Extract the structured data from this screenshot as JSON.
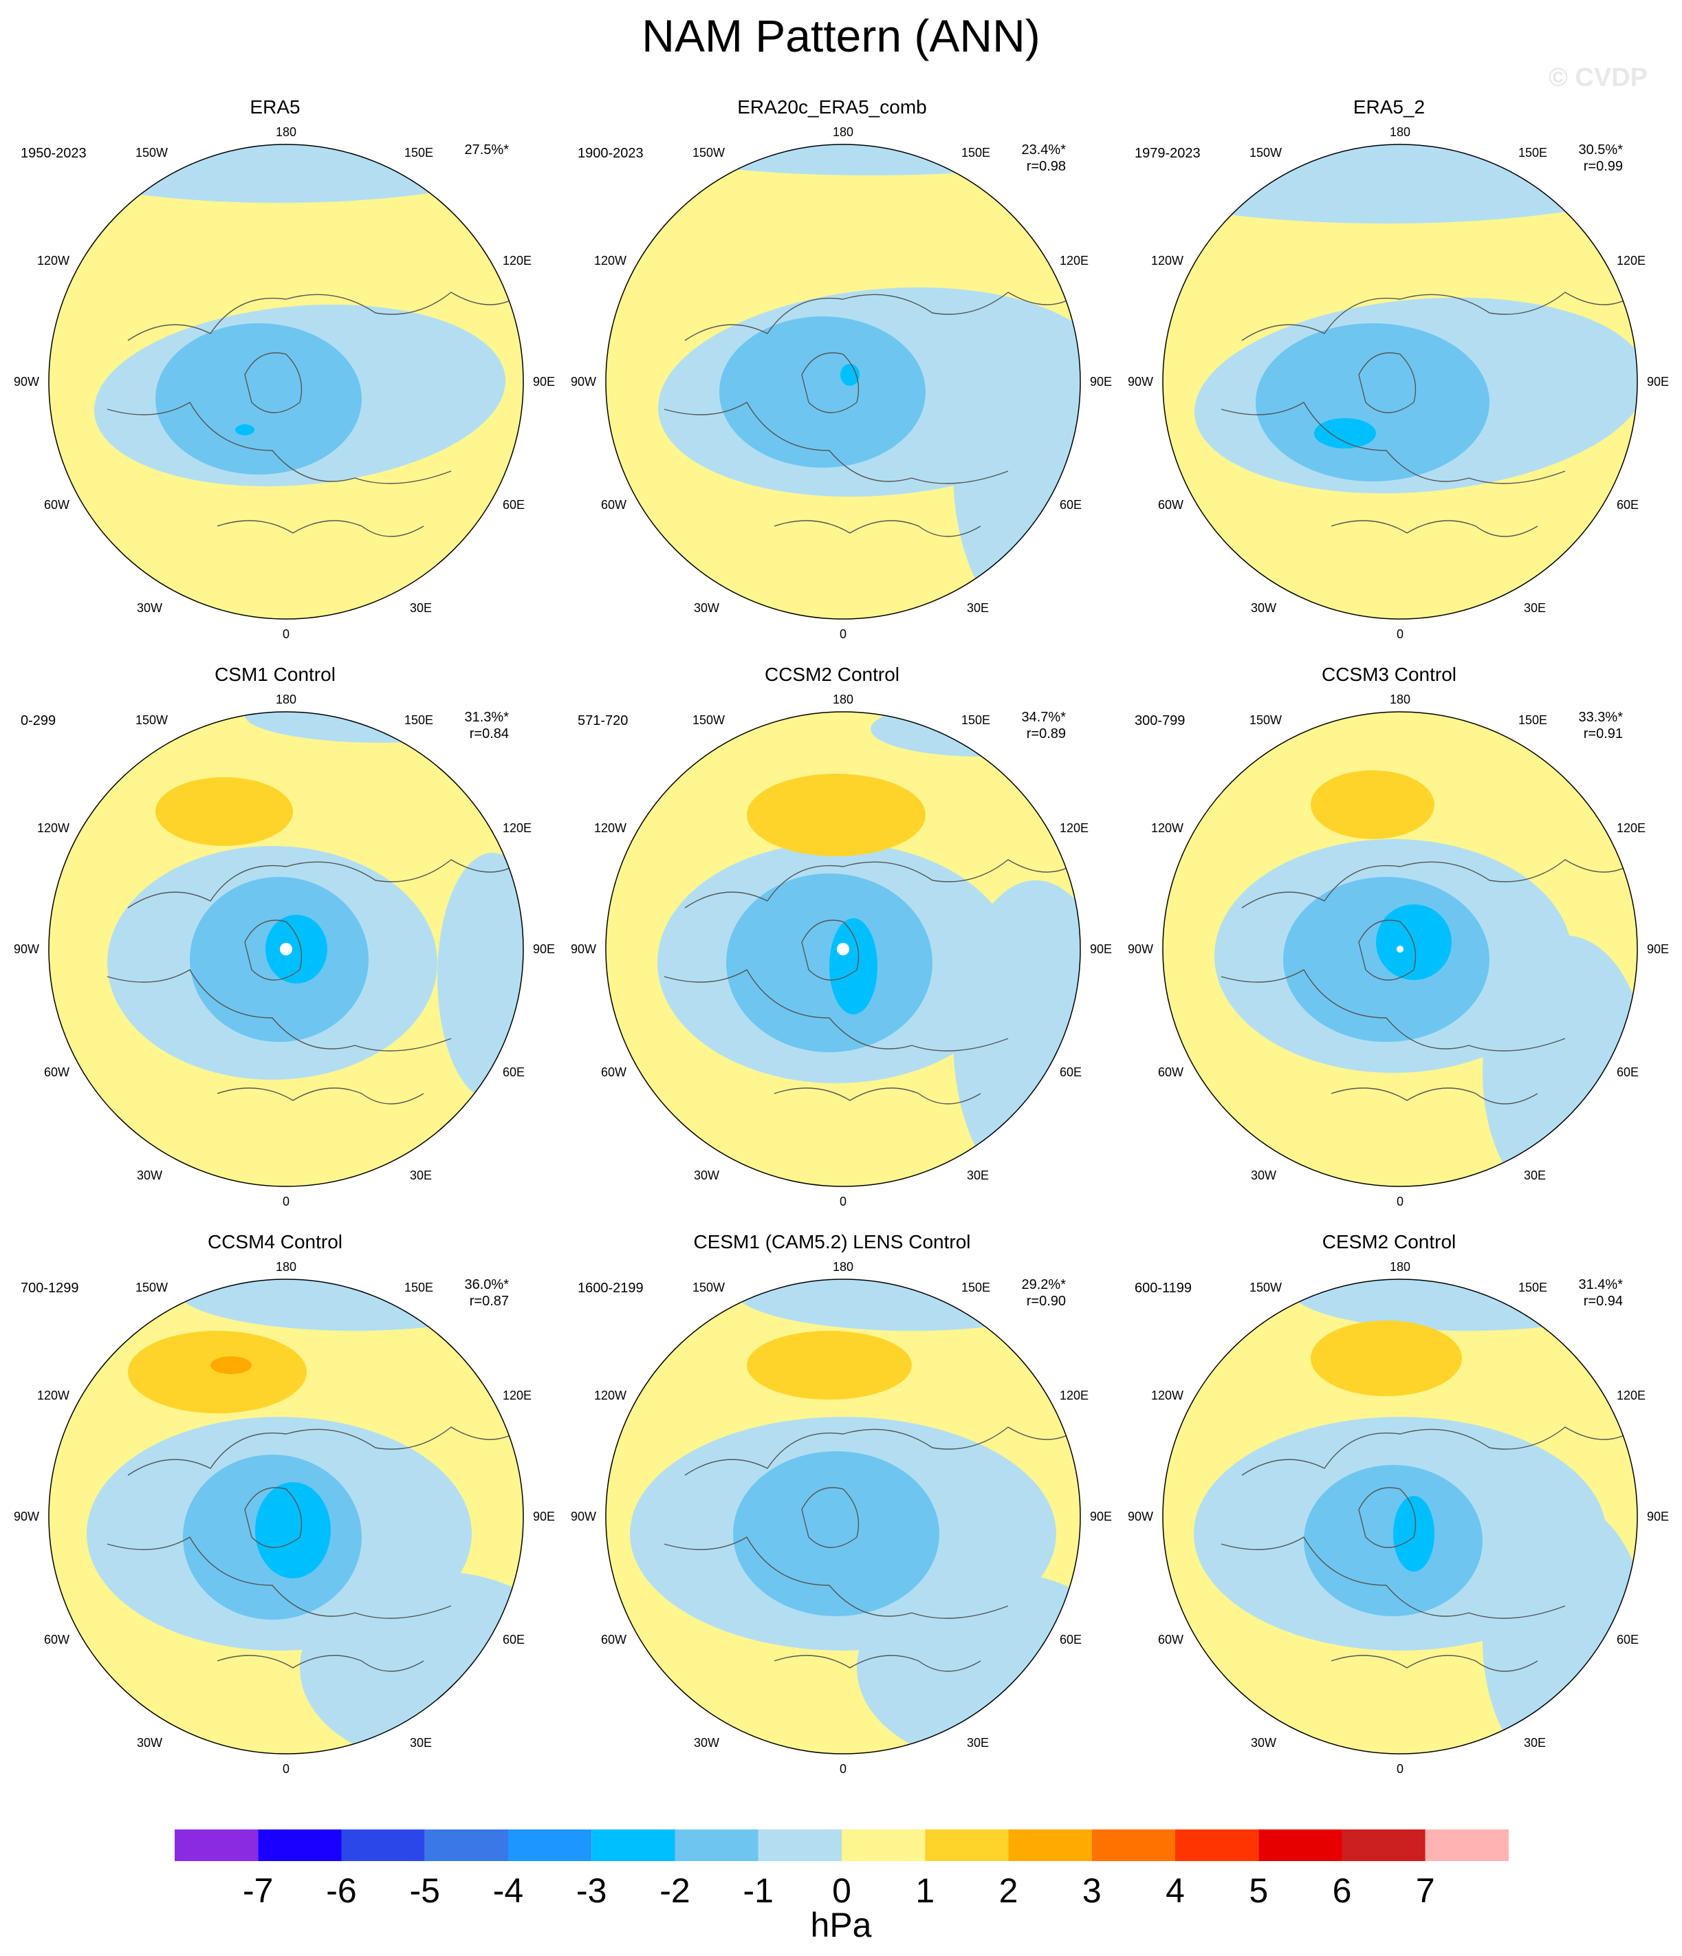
{
  "title": "NAM Pattern (ANN)",
  "watermark": "© CVDP",
  "longitude_labels": {
    "top": "180",
    "bottom": "0",
    "left": "90W",
    "right": "90E",
    "upper_left": "150W",
    "upper_right": "150E",
    "mid_upper_left": "120W",
    "mid_upper_right": "120E",
    "mid_lower_left": "60W",
    "mid_lower_right": "60E",
    "lower_left": "30W",
    "lower_right": "30E"
  },
  "panels": [
    {
      "name": "ERA5",
      "period": "1950-2023",
      "pct": "27.5%*",
      "r": ""
    },
    {
      "name": "ERA20c_ERA5_comb",
      "period": "1900-2023",
      "pct": "23.4%*",
      "r": "r=0.98"
    },
    {
      "name": "ERA5_2",
      "period": "1979-2023",
      "pct": "30.5%*",
      "r": "r=0.99"
    },
    {
      "name": "CSM1 Control",
      "period": "0-299",
      "pct": "31.3%*",
      "r": "r=0.84"
    },
    {
      "name": "CCSM2 Control",
      "period": "571-720",
      "pct": "34.7%*",
      "r": "r=0.89"
    },
    {
      "name": "CCSM3 Control",
      "period": "300-799",
      "pct": "33.3%*",
      "r": "r=0.91"
    },
    {
      "name": "CCSM4 Control",
      "period": "700-1299",
      "pct": "36.0%*",
      "r": "r=0.87"
    },
    {
      "name": "CESM1 (CAM5.2) LENS Control",
      "period": "1600-2199",
      "pct": "29.2%*",
      "r": "r=0.90"
    },
    {
      "name": "CESM2 Control",
      "period": "600-1199",
      "pct": "31.4%*",
      "r": "r=0.94"
    }
  ],
  "colorbar": {
    "units": "hPa",
    "ticks": [
      "-7",
      "-6",
      "-5",
      "-4",
      "-3",
      "-2",
      "-1",
      "0",
      "1",
      "2",
      "3",
      "4",
      "5",
      "6",
      "7"
    ],
    "colors": [
      "#8a2be2",
      "#1a00ff",
      "#2b47e8",
      "#3a78e8",
      "#1e96ff",
      "#00bfff",
      "#6ec6f0",
      "#b3def2",
      "#fff68f",
      "#ffd42a",
      "#ffaa00",
      "#ff7200",
      "#ff3500",
      "#e60000",
      "#cc1f1f",
      "#ffb3b3"
    ]
  },
  "fill_colors": {
    "positive_0_1": "#fff68f",
    "negative_0_1": "#b3def2",
    "negative_1_2": "#6ec6f0",
    "negative_2_3": "#00bfff",
    "positive_1_2": "#ffd42a",
    "positive_2_3": "#ffaa00"
  }
}
